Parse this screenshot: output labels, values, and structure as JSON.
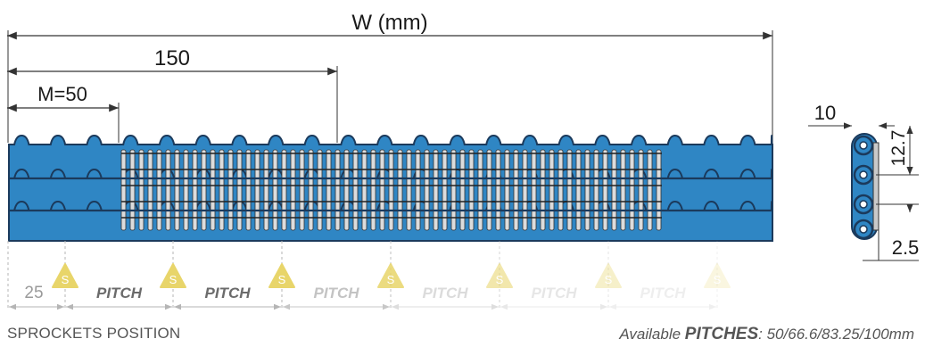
{
  "labels": {
    "width": "W (mm)",
    "dim_150": "150",
    "module": "M=50",
    "offset": "25",
    "pitch": "PITCH",
    "sprocket_mark": "S",
    "side_thickness": "10",
    "side_pitch": "12.7",
    "side_gap": "2.5"
  },
  "footer": {
    "sprockets_position": "SPROCKETS POSITION",
    "available_prefix": "Available ",
    "pitches_word": "PITCHES",
    "pitches_values": ": 50/66.6/83.25/100mm"
  },
  "colors": {
    "belt_blue": "#2f86c4",
    "belt_edge": "#1b3a5c",
    "sprocket_yellow": "#e8d56a",
    "dimension_line": "#333333",
    "grey_text": "#9a9a9a"
  },
  "sprocket_count": 7,
  "pitch_label_count": 6
}
